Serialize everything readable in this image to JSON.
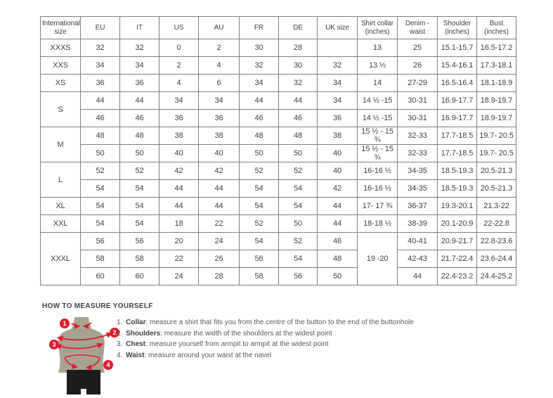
{
  "colors": {
    "accent_red": "#e11b2d",
    "torso_olive": "#a7a390",
    "shorts_black": "#1c1c1c",
    "table_border": "#7e7e7e",
    "text": "#414042"
  },
  "table": {
    "columns": [
      "International size",
      "EU",
      "IT",
      "US",
      "AU",
      "FR",
      "DE",
      "UK size",
      "Shirt collar (inches)",
      "Denim - waist",
      "Shoulder (inches)",
      "Bust (inches)"
    ],
    "rows": [
      {
        "cells": [
          {
            "t": "XXXS"
          },
          {
            "t": "32"
          },
          {
            "t": "32"
          },
          {
            "t": "0"
          },
          {
            "t": "2"
          },
          {
            "t": "30"
          },
          {
            "t": "28"
          },
          {
            "t": ""
          },
          {
            "t": "13"
          },
          {
            "t": "25"
          },
          {
            "t": "15.1-15.7"
          },
          {
            "t": "16.5-17.2"
          }
        ]
      },
      {
        "cells": [
          {
            "t": "XXS"
          },
          {
            "t": "34"
          },
          {
            "t": "34"
          },
          {
            "t": "2"
          },
          {
            "t": "4"
          },
          {
            "t": "32"
          },
          {
            "t": "30"
          },
          {
            "t": "32"
          },
          {
            "t": "13 ½"
          },
          {
            "t": "26"
          },
          {
            "t": "15.4-16.1"
          },
          {
            "t": "17.3-18.1"
          }
        ]
      },
      {
        "cells": [
          {
            "t": "XS"
          },
          {
            "t": "36"
          },
          {
            "t": "36"
          },
          {
            "t": "4"
          },
          {
            "t": "6"
          },
          {
            "t": "34"
          },
          {
            "t": "32"
          },
          {
            "t": "34"
          },
          {
            "t": "14"
          },
          {
            "t": "27-29"
          },
          {
            "t": "16.5-16.4"
          },
          {
            "t": "18.1-18.9"
          }
        ]
      },
      {
        "cells": [
          {
            "t": "S",
            "rs": 2
          },
          {
            "t": "44"
          },
          {
            "t": "44"
          },
          {
            "t": "34"
          },
          {
            "t": "34"
          },
          {
            "t": "44"
          },
          {
            "t": "44"
          },
          {
            "t": "34"
          },
          {
            "t": "14 ½ -15"
          },
          {
            "t": "30-31"
          },
          {
            "t": "16.9-17.7"
          },
          {
            "t": "18.9-19.7"
          }
        ]
      },
      {
        "cells": [
          {
            "t": "46"
          },
          {
            "t": "46"
          },
          {
            "t": "36"
          },
          {
            "t": "36"
          },
          {
            "t": "46"
          },
          {
            "t": "46"
          },
          {
            "t": "36"
          },
          {
            "t": "14 ½ -15"
          },
          {
            "t": "30-31"
          },
          {
            "t": "16.9-17.7"
          },
          {
            "t": "18.9-19.7"
          }
        ]
      },
      {
        "cells": [
          {
            "t": "M",
            "rs": 2
          },
          {
            "t": "48"
          },
          {
            "t": "48"
          },
          {
            "t": "38"
          },
          {
            "t": "38"
          },
          {
            "t": "48"
          },
          {
            "t": "48"
          },
          {
            "t": "38"
          },
          {
            "t": "15 ½ - 15 ¾"
          },
          {
            "t": "32-33"
          },
          {
            "t": "17.7-18.5"
          },
          {
            "t": "19.7- 20.5"
          }
        ]
      },
      {
        "cells": [
          {
            "t": "50"
          },
          {
            "t": "50"
          },
          {
            "t": "40"
          },
          {
            "t": "40"
          },
          {
            "t": "50"
          },
          {
            "t": "50"
          },
          {
            "t": "40"
          },
          {
            "t": "15 ½ - 15 ¾"
          },
          {
            "t": "32-33"
          },
          {
            "t": "17.7-18.5"
          },
          {
            "t": "19.7- 20.5"
          }
        ]
      },
      {
        "cells": [
          {
            "t": "L",
            "rs": 2
          },
          {
            "t": "52"
          },
          {
            "t": "52"
          },
          {
            "t": "42"
          },
          {
            "t": "42"
          },
          {
            "t": "52"
          },
          {
            "t": "52"
          },
          {
            "t": "40"
          },
          {
            "t": "16-16 ½"
          },
          {
            "t": "34-35"
          },
          {
            "t": "18.5-19.3"
          },
          {
            "t": "20.5-21.3"
          }
        ]
      },
      {
        "cells": [
          {
            "t": "54"
          },
          {
            "t": "54"
          },
          {
            "t": "44"
          },
          {
            "t": "44"
          },
          {
            "t": "54"
          },
          {
            "t": "54"
          },
          {
            "t": "42"
          },
          {
            "t": "16-16 ½"
          },
          {
            "t": "34-35"
          },
          {
            "t": "18.5-19.3"
          },
          {
            "t": "20.5-21.3"
          }
        ]
      },
      {
        "cells": [
          {
            "t": "XL"
          },
          {
            "t": "54"
          },
          {
            "t": "54"
          },
          {
            "t": "44"
          },
          {
            "t": "44"
          },
          {
            "t": "54"
          },
          {
            "t": "54"
          },
          {
            "t": "44"
          },
          {
            "t": "17- 17 ¾"
          },
          {
            "t": "36-37"
          },
          {
            "t": "19.3-20.1"
          },
          {
            "t": "21.3-22"
          }
        ]
      },
      {
        "cells": [
          {
            "t": "XXL"
          },
          {
            "t": "54"
          },
          {
            "t": "54"
          },
          {
            "t": "18"
          },
          {
            "t": "22"
          },
          {
            "t": "52"
          },
          {
            "t": "50"
          },
          {
            "t": "44"
          },
          {
            "t": "18-18 ½"
          },
          {
            "t": "38-39"
          },
          {
            "t": "20.1-20.9"
          },
          {
            "t": "22-22.8"
          }
        ]
      },
      {
        "cells": [
          {
            "t": "XXXL",
            "rs": 3
          },
          {
            "t": "56"
          },
          {
            "t": "56"
          },
          {
            "t": "20"
          },
          {
            "t": "24"
          },
          {
            "t": "54"
          },
          {
            "t": "52"
          },
          {
            "t": "46"
          },
          {
            "t": "19 -20",
            "rs": 3
          },
          {
            "t": "40-41"
          },
          {
            "t": "20.9-21.7"
          },
          {
            "t": "22.8-23.6"
          }
        ]
      },
      {
        "cells": [
          {
            "t": "58"
          },
          {
            "t": "58"
          },
          {
            "t": "22"
          },
          {
            "t": "26"
          },
          {
            "t": "56"
          },
          {
            "t": "54"
          },
          {
            "t": "48"
          },
          {
            "t": "42-43"
          },
          {
            "t": "21.7-22.4"
          },
          {
            "t": "23.6-24.4"
          }
        ]
      },
      {
        "cells": [
          {
            "t": "60"
          },
          {
            "t": "60"
          },
          {
            "t": "24"
          },
          {
            "t": "28"
          },
          {
            "t": "58"
          },
          {
            "t": "56"
          },
          {
            "t": "50"
          },
          {
            "t": "44"
          },
          {
            "t": "22.4-23.2"
          },
          {
            "t": "24.4-25.2"
          }
        ]
      }
    ]
  },
  "how_to_measure": {
    "heading": "HOW TO MEASURE YOURSELF",
    "steps": [
      {
        "num": "1.",
        "label": "Collar",
        "text": ": measure a shirt that fits you from the centre of the button to the end of the buttonhole"
      },
      {
        "num": "2.",
        "label": "Shoulders",
        "text": ": measure the width of the shoulders at the widest point"
      },
      {
        "num": "3.",
        "label": "Chest",
        "text": ": measure yourself from armpit to armpit at the widest point"
      },
      {
        "num": "4.",
        "label": "Waist",
        "text": ": measure around your waist at the navel"
      }
    ],
    "figure_badges": [
      "1",
      "2",
      "3",
      "4"
    ]
  }
}
